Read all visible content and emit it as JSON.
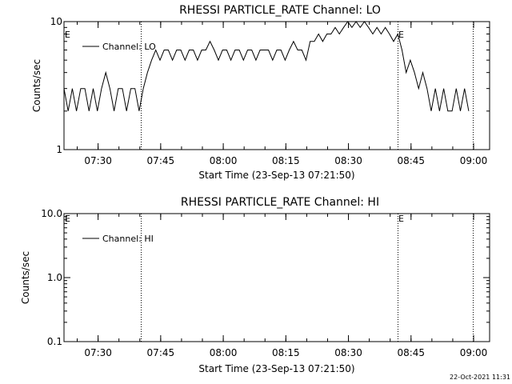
{
  "chart_data": [
    {
      "type": "line",
      "title": "RHESSI PARTICLE_RATE Channel: LO",
      "xlabel": "Start Time (23-Sep-13 07:21:50)",
      "ylabel": "Counts/sec",
      "yscale": "log",
      "ylim": [
        1,
        10
      ],
      "ytick_labels": [
        "1",
        "10"
      ],
      "xlim_min_after_start": [
        0,
        102
      ],
      "xtick_labels": [
        "07:30",
        "07:45",
        "08:00",
        "08:15",
        "08:30",
        "08:45",
        "09:00"
      ],
      "series": [
        {
          "name": "Channel: LO",
          "x_min_after_start": [
            0,
            1,
            2,
            3,
            4,
            5,
            6,
            7,
            8,
            9,
            10,
            11,
            12,
            13,
            14,
            15,
            16,
            17,
            18,
            19,
            20,
            21,
            22,
            23,
            24,
            25,
            26,
            27,
            28,
            29,
            30,
            31,
            32,
            33,
            34,
            35,
            36,
            37,
            38,
            39,
            40,
            41,
            42,
            43,
            44,
            45,
            46,
            47,
            48,
            49,
            50,
            51,
            52,
            53,
            54,
            55,
            56,
            57,
            58,
            59,
            60,
            61,
            62,
            63,
            64,
            65,
            66,
            67,
            68,
            69,
            70,
            71,
            72,
            73,
            74,
            75,
            76,
            77,
            78,
            79,
            80,
            81,
            82,
            83,
            84,
            85,
            86,
            87,
            88,
            89,
            90,
            91,
            92,
            93,
            94,
            95,
            96,
            97
          ],
          "values": [
            3,
            2,
            3,
            2,
            3,
            3,
            2,
            3,
            2,
            3,
            4,
            3,
            2,
            3,
            3,
            2,
            3,
            3,
            2,
            3,
            4,
            5,
            6,
            5,
            6,
            6,
            5,
            6,
            6,
            5,
            6,
            6,
            5,
            6,
            6,
            7,
            6,
            5,
            6,
            6,
            5,
            6,
            6,
            5,
            6,
            6,
            5,
            6,
            6,
            6,
            5,
            6,
            6,
            5,
            6,
            7,
            6,
            6,
            5,
            7,
            7,
            8,
            7,
            8,
            8,
            9,
            8,
            9,
            10,
            9,
            10,
            9,
            10,
            9,
            8,
            9,
            8,
            9,
            8,
            7,
            8,
            6,
            4,
            5,
            4,
            3,
            4,
            3,
            2,
            3,
            2,
            3,
            2,
            2,
            3,
            2,
            3,
            2
          ]
        }
      ],
      "event_marks": [
        "E",
        "E"
      ]
    },
    {
      "type": "line",
      "title": "RHESSI PARTICLE_RATE Channel: HI",
      "xlabel": "Start Time (23-Sep-13 07:21:50)",
      "ylabel": "Counts/sec",
      "yscale": "log",
      "ylim": [
        0.1,
        10
      ],
      "ytick_labels": [
        "0.1",
        "1.0",
        "10.0"
      ],
      "xlim_min_after_start": [
        0,
        102
      ],
      "xtick_labels": [
        "07:30",
        "07:45",
        "08:00",
        "08:15",
        "08:30",
        "08:45",
        "09:00"
      ],
      "series": [
        {
          "name": "Channel: HI",
          "x_min_after_start": [],
          "values": []
        }
      ],
      "event_marks": [
        "E",
        "E"
      ]
    }
  ],
  "timestamp": "22-Oct-2021 11:31"
}
